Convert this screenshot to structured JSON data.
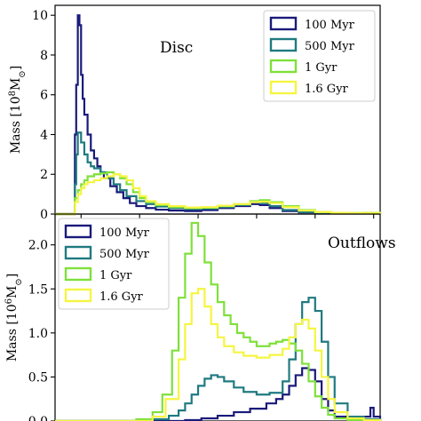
{
  "chart_data": [
    {
      "type": "line",
      "title": "Disc",
      "ylabel": "Mass [10",
      "ylabel_exp": "8",
      "ylabel_unit": "M",
      "ylabel_sub": "⊙",
      "ylabel_close": "]",
      "ylim": [
        0,
        10.5
      ],
      "xlim": [
        0,
        1
      ],
      "yticks": [
        0,
        2,
        4,
        6,
        8,
        10
      ],
      "ytick_labels": [
        "0",
        "2",
        "4",
        "6",
        "8",
        "10"
      ],
      "xticks": [
        0.08,
        0.26,
        0.44,
        0.62,
        0.8,
        0.98
      ],
      "legend_position": "top-right",
      "series": [
        {
          "name": "100 Myr",
          "color": "#1a1a7a",
          "x": [
            0.0,
            0.06,
            0.061,
            0.065,
            0.07,
            0.075,
            0.08,
            0.085,
            0.09,
            0.1,
            0.11,
            0.12,
            0.13,
            0.14,
            0.15,
            0.17,
            0.19,
            0.21,
            0.23,
            0.25,
            0.28,
            0.31,
            0.35,
            0.4,
            0.45,
            0.5,
            0.55,
            0.6,
            0.63,
            0.66,
            0.7,
            0.75,
            0.8,
            0.85,
            0.9,
            0.95,
            0.98,
            1.0
          ],
          "y": [
            0,
            0,
            4.0,
            6.5,
            10.0,
            9.5,
            7.0,
            5.8,
            5.0,
            4.0,
            3.2,
            2.8,
            2.4,
            2.1,
            1.8,
            1.4,
            1.1,
            0.8,
            0.55,
            0.4,
            0.3,
            0.22,
            0.18,
            0.15,
            0.2,
            0.3,
            0.4,
            0.5,
            0.45,
            0.3,
            0.15,
            0.08,
            0.05,
            0.03,
            0.03,
            0.05,
            0.03,
            0
          ]
        },
        {
          "name": "500 Myr",
          "color": "#1f7a80",
          "x": [
            0.0,
            0.06,
            0.061,
            0.065,
            0.07,
            0.08,
            0.09,
            0.1,
            0.11,
            0.12,
            0.14,
            0.16,
            0.18,
            0.2,
            0.22,
            0.25,
            0.28,
            0.31,
            0.35,
            0.4,
            0.45,
            0.5,
            0.55,
            0.6,
            0.63,
            0.66,
            0.7,
            0.75,
            0.8,
            0.85,
            0.9,
            0.95,
            1.0
          ],
          "y": [
            0,
            0,
            1.5,
            3.0,
            4.1,
            3.6,
            3.0,
            2.6,
            2.4,
            2.3,
            2.1,
            1.8,
            1.5,
            1.2,
            0.9,
            0.65,
            0.5,
            0.38,
            0.3,
            0.25,
            0.28,
            0.35,
            0.45,
            0.6,
            0.55,
            0.4,
            0.2,
            0.1,
            0.05,
            0.04,
            0.04,
            0.05,
            0
          ]
        },
        {
          "name": "1 Gyr",
          "color": "#7fe03a",
          "x": [
            0.0,
            0.06,
            0.061,
            0.07,
            0.08,
            0.09,
            0.1,
            0.12,
            0.14,
            0.16,
            0.18,
            0.2,
            0.22,
            0.24,
            0.26,
            0.28,
            0.31,
            0.35,
            0.4,
            0.45,
            0.5,
            0.55,
            0.6,
            0.63,
            0.66,
            0.7,
            0.75,
            0.8,
            0.85,
            0.9,
            0.95,
            1.0
          ],
          "y": [
            0,
            0,
            0.8,
            1.2,
            1.5,
            1.7,
            1.9,
            2.0,
            2.05,
            2.1,
            2.0,
            1.8,
            1.5,
            1.1,
            0.8,
            0.6,
            0.45,
            0.35,
            0.3,
            0.32,
            0.4,
            0.5,
            0.65,
            0.7,
            0.6,
            0.4,
            0.2,
            0.1,
            0.06,
            0.05,
            0.06,
            0
          ]
        },
        {
          "name": "1.6 Gyr",
          "color": "#f5f542",
          "x": [
            0.0,
            0.06,
            0.061,
            0.07,
            0.08,
            0.09,
            0.1,
            0.12,
            0.14,
            0.16,
            0.18,
            0.2,
            0.22,
            0.24,
            0.26,
            0.28,
            0.31,
            0.35,
            0.4,
            0.45,
            0.5,
            0.55,
            0.6,
            0.63,
            0.66,
            0.7,
            0.75,
            0.8,
            0.85,
            0.9,
            0.95,
            1.0
          ],
          "y": [
            0,
            0,
            0.6,
            1.0,
            1.3,
            1.5,
            1.6,
            1.7,
            1.8,
            1.9,
            2.0,
            1.9,
            1.7,
            1.3,
            0.9,
            0.65,
            0.5,
            0.4,
            0.33,
            0.35,
            0.42,
            0.5,
            0.6,
            0.62,
            0.55,
            0.35,
            0.18,
            0.1,
            0.06,
            0.05,
            0.05,
            0
          ]
        }
      ]
    },
    {
      "type": "line",
      "title": "Outflows",
      "ylabel": "Mass [10",
      "ylabel_exp": "6",
      "ylabel_unit": "M",
      "ylabel_sub": "⊙",
      "ylabel_close": "]",
      "ylim": [
        0,
        2.35
      ],
      "xlim": [
        0,
        1
      ],
      "yticks": [
        0,
        0.5,
        1.0,
        1.5,
        2.0
      ],
      "ytick_labels": [
        "0.0",
        "0.5",
        "1.0",
        "1.5",
        "2.0"
      ],
      "xticks": [
        0.08,
        0.26,
        0.44,
        0.62,
        0.8,
        0.98
      ],
      "legend_position": "top-left",
      "series": [
        {
          "name": "100 Myr",
          "color": "#1a1a7a",
          "x": [
            0.0,
            0.35,
            0.4,
            0.45,
            0.5,
            0.55,
            0.6,
            0.65,
            0.68,
            0.7,
            0.72,
            0.74,
            0.76,
            0.78,
            0.8,
            0.82,
            0.84,
            0.86,
            0.9,
            0.95,
            0.97,
            0.98,
            1.0
          ],
          "y": [
            0,
            0,
            0.01,
            0.03,
            0.06,
            0.1,
            0.14,
            0.2,
            0.25,
            0.3,
            0.4,
            0.52,
            0.6,
            0.58,
            0.45,
            0.25,
            0.12,
            0.05,
            0.02,
            0.05,
            0.15,
            0.05,
            0
          ]
        },
        {
          "name": "500 Myr",
          "color": "#1f7a80",
          "x": [
            0.0,
            0.25,
            0.3,
            0.35,
            0.38,
            0.4,
            0.42,
            0.44,
            0.46,
            0.48,
            0.5,
            0.52,
            0.55,
            0.58,
            0.62,
            0.66,
            0.7,
            0.72,
            0.74,
            0.76,
            0.78,
            0.8,
            0.82,
            0.84,
            0.86,
            0.9,
            0.95,
            1.0
          ],
          "y": [
            0,
            0,
            0.02,
            0.06,
            0.12,
            0.2,
            0.3,
            0.4,
            0.48,
            0.52,
            0.5,
            0.45,
            0.38,
            0.33,
            0.3,
            0.32,
            0.45,
            0.7,
            1.1,
            1.35,
            1.4,
            1.25,
            0.9,
            0.5,
            0.2,
            0.05,
            0.02,
            0
          ]
        },
        {
          "name": "1 Gyr",
          "color": "#7fe03a",
          "x": [
            0.0,
            0.2,
            0.25,
            0.3,
            0.33,
            0.36,
            0.38,
            0.4,
            0.42,
            0.44,
            0.46,
            0.48,
            0.5,
            0.52,
            0.54,
            0.56,
            0.58,
            0.6,
            0.62,
            0.64,
            0.66,
            0.68,
            0.7,
            0.72,
            0.74,
            0.76,
            0.78,
            0.8,
            0.82,
            0.84,
            0.86,
            0.9,
            0.95,
            1.0
          ],
          "y": [
            0,
            0,
            0.02,
            0.1,
            0.3,
            0.8,
            1.4,
            1.9,
            2.25,
            2.1,
            1.8,
            1.55,
            1.35,
            1.2,
            1.1,
            1.0,
            0.95,
            0.9,
            0.85,
            0.85,
            0.88,
            0.9,
            0.92,
            0.88,
            0.8,
            0.65,
            0.45,
            0.28,
            0.15,
            0.07,
            0.03,
            0.01,
            0.01,
            0
          ]
        },
        {
          "name": "1.6 Gyr",
          "color": "#f5f542",
          "x": [
            0.0,
            0.25,
            0.3,
            0.34,
            0.38,
            0.4,
            0.42,
            0.44,
            0.46,
            0.48,
            0.5,
            0.52,
            0.55,
            0.58,
            0.62,
            0.66,
            0.7,
            0.72,
            0.74,
            0.76,
            0.78,
            0.8,
            0.82,
            0.84,
            0.86,
            0.9,
            0.95,
            1.0
          ],
          "y": [
            0,
            0,
            0.05,
            0.25,
            0.7,
            1.1,
            1.45,
            1.5,
            1.3,
            1.1,
            0.95,
            0.85,
            0.78,
            0.74,
            0.72,
            0.75,
            0.82,
            0.95,
            1.1,
            1.15,
            1.05,
            0.8,
            0.5,
            0.25,
            0.1,
            0.03,
            0.01,
            0
          ]
        }
      ]
    }
  ]
}
